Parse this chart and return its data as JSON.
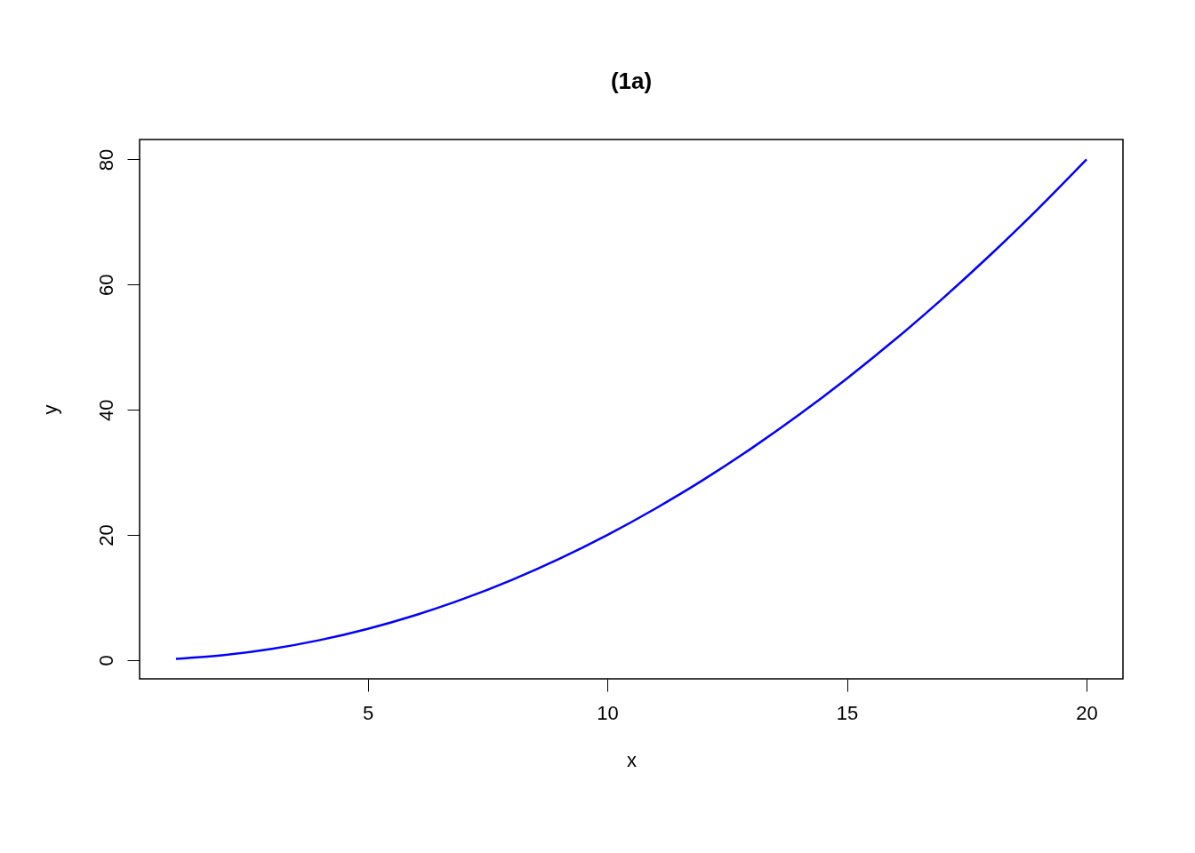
{
  "chart_data": {
    "type": "line",
    "title": "(1a)",
    "xlabel": "x",
    "ylabel": "y",
    "x": [
      1,
      2,
      3,
      4,
      5,
      6,
      7,
      8,
      9,
      10,
      11,
      12,
      13,
      14,
      15,
      16,
      17,
      18,
      19,
      20
    ],
    "series": [
      {
        "color": "#0000ff",
        "values": [
          0.2,
          0.8,
          1.8,
          3.2,
          5,
          7.2,
          9.8,
          12.8,
          16.2,
          20,
          24.2,
          28.8,
          33.8,
          39.2,
          45,
          51.2,
          57.8,
          64.8,
          72.2,
          80
        ]
      }
    ],
    "xlim": [
      0.24,
      20.76
    ],
    "ylim": [
      -2.99,
      83.19
    ],
    "xticks": [
      5,
      10,
      15,
      20
    ],
    "yticks": [
      0,
      20,
      40,
      60,
      80
    ],
    "grid": false,
    "marker": "none",
    "line_style": "solid"
  }
}
